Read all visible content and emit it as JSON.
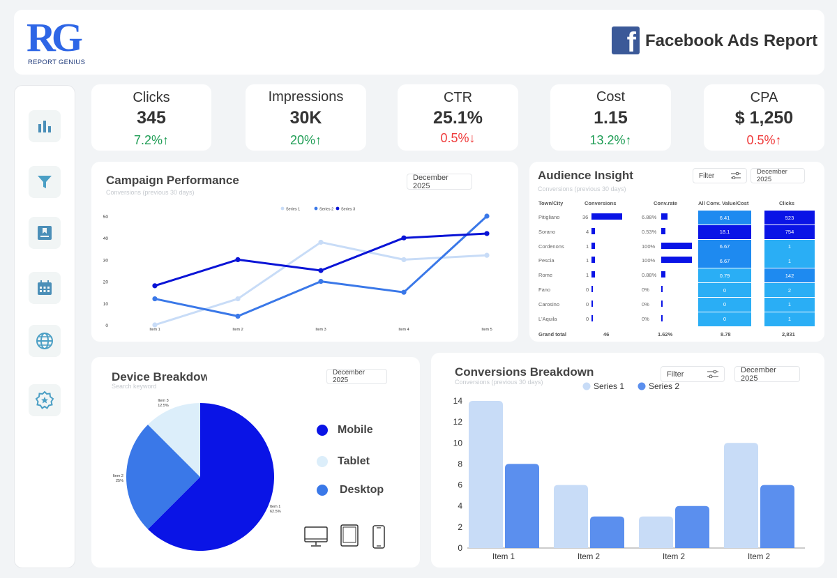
{
  "header": {
    "logo_letters": "RG",
    "logo_name": "REPORT GENIUS",
    "title": "Facebook Ads Report",
    "fb_glyph": "f"
  },
  "sidebar": {
    "items": [
      {
        "icon": "bar-chart-icon"
      },
      {
        "icon": "filter-icon"
      },
      {
        "icon": "bookmark-icon"
      },
      {
        "icon": "calendar-icon"
      },
      {
        "icon": "globe-icon"
      },
      {
        "icon": "settings-badge-icon"
      }
    ]
  },
  "kpis": [
    {
      "title": "Clicks",
      "value": "345",
      "delta": "7.2%",
      "direction": "up"
    },
    {
      "title": "Impressions",
      "value": "30K",
      "delta": "20%",
      "direction": "up"
    },
    {
      "title": "CTR",
      "value": "25.1%",
      "delta": "0.5%",
      "direction": "down"
    },
    {
      "title": "Cost",
      "value": "1.15",
      "delta": "13.2%",
      "direction": "up"
    },
    {
      "title": "CPA",
      "value": "$ 1,250",
      "delta": "0.5%",
      "direction": "up-red"
    }
  ],
  "campaign": {
    "title": "Campaign Performance",
    "subtitle": "Conversions (previous 30 days)",
    "date": "December 2025"
  },
  "audience": {
    "title": "Audience Insight",
    "subtitle": "Conversions (previous 30 days)",
    "filter": "Filter",
    "date": "December 2025",
    "headers": [
      "Town/City",
      "Conversions",
      "Conv.rate",
      "All Conv. Value/Cost",
      "Clicks"
    ],
    "rows": [
      {
        "city": "Pitigliano",
        "conv": "36",
        "conv_n": 36,
        "rate": "6.88%",
        "rate_n": 6.88,
        "value": "6.41",
        "clicks": "523"
      },
      {
        "city": "Sorano",
        "conv": "4",
        "conv_n": 4,
        "rate": "0.53%",
        "rate_n": 0.53,
        "value": "18.1",
        "clicks": "754"
      },
      {
        "city": "Cordenons",
        "conv": "1",
        "conv_n": 1,
        "rate": "100%",
        "rate_n": 100,
        "value": "6.67",
        "clicks": "1"
      },
      {
        "city": "Pescia",
        "conv": "1",
        "conv_n": 1,
        "rate": "100%",
        "rate_n": 100,
        "value": "6.67",
        "clicks": "1"
      },
      {
        "city": "Rome",
        "conv": "1",
        "conv_n": 1,
        "rate": "0.88%",
        "rate_n": 0.88,
        "value": "0.79",
        "clicks": "142"
      },
      {
        "city": "Fano",
        "conv": "0",
        "conv_n": 0,
        "rate": "0%",
        "rate_n": 0,
        "value": "0",
        "clicks": "2"
      },
      {
        "city": "Carosino",
        "conv": "0",
        "conv_n": 0,
        "rate": "0%",
        "rate_n": 0,
        "value": "0",
        "clicks": "1"
      },
      {
        "city": "L'Aquila",
        "conv": "0",
        "conv_n": 0,
        "rate": "0%",
        "rate_n": 0,
        "value": "0",
        "clicks": "1"
      }
    ],
    "totals": {
      "label": "Grand total",
      "conv": "46",
      "rate": "1.62%",
      "value": "8.78",
      "clicks": "2,831"
    }
  },
  "device": {
    "title": "Device Breakdown",
    "subtitle": "Search keyword",
    "date": "December 2025",
    "legend": [
      {
        "label": "Mobile",
        "color": "#0a14e6"
      },
      {
        "label": "Tablet",
        "color": "#dceefa"
      },
      {
        "label": "Desktop",
        "color": "#3a78e8"
      }
    ]
  },
  "conversions": {
    "title": "Conversions Breakdown",
    "subtitle": "Conversions (previous 30 days)",
    "filter": "Filter",
    "date": "December 2025"
  },
  "colors": {
    "series1": "#c8dcf7",
    "series2": "#3a78e8",
    "series3": "#0a14d6",
    "cell_dark": "#0a14e6",
    "cell_mid": "#1e8af0",
    "cell_light": "#2aaef5",
    "up": "#1f9d55",
    "down": "#ef3b3b"
  },
  "chart_data": [
    {
      "type": "line",
      "title": "Campaign Performance",
      "categories": [
        "Item 1",
        "Item 2",
        "Item 3",
        "Item 4",
        "Item 5"
      ],
      "ylim": [
        0,
        50
      ],
      "yticks": [
        "0",
        "10",
        "20",
        "30",
        "40",
        "50"
      ],
      "legend_position": "top",
      "series": [
        {
          "name": "Series 1",
          "values": [
            0,
            12,
            38,
            30,
            32
          ]
        },
        {
          "name": "Series 2",
          "values": [
            12,
            4,
            20,
            15,
            50
          ]
        },
        {
          "name": "Series 3",
          "values": [
            18,
            30,
            25,
            40,
            42
          ]
        }
      ]
    },
    {
      "type": "pie",
      "title": "Device Breakdown",
      "slices": [
        {
          "label": "Item 1",
          "pct_label": "62.5%",
          "value": 62.5
        },
        {
          "label": "Item 2",
          "pct_label": "25%",
          "value": 25
        },
        {
          "label": "Item 3",
          "pct_label": "12.5%",
          "value": 12.5
        }
      ]
    },
    {
      "type": "bar",
      "title": "Conversions Breakdown",
      "categories": [
        "Item 1",
        "Item 2",
        "Item 2",
        "Item 2"
      ],
      "ylim": [
        0,
        14
      ],
      "yticks": [
        "0",
        "2",
        "4",
        "6",
        "8",
        "10",
        "12",
        "14"
      ],
      "legend_position": "top",
      "series": [
        {
          "name": "Series 1",
          "values": [
            14,
            6,
            3,
            10
          ]
        },
        {
          "name": "Series 2",
          "values": [
            8,
            3,
            4,
            6
          ]
        }
      ]
    }
  ]
}
